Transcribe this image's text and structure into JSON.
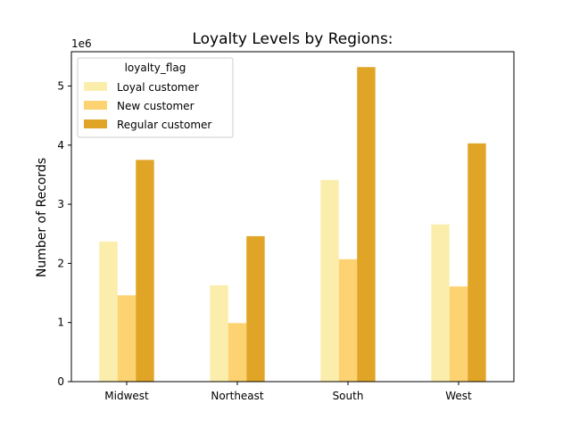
{
  "chart_data": {
    "type": "bar",
    "title": "Loyalty Levels by Regions:",
    "xlabel": "",
    "ylabel": "Number of Records",
    "y_offset_label": "1e6",
    "y_scale": 1000000,
    "ylim": [
      0,
      5580000
    ],
    "yticks": [
      0,
      1,
      2,
      3,
      4,
      5
    ],
    "categories": [
      "Midwest",
      "Northeast",
      "South",
      "West"
    ],
    "legend": {
      "title": "loyalty_flag",
      "placement": "top-left"
    },
    "series": [
      {
        "name": "Loyal customer",
        "color": "#fbeeac",
        "values": [
          2370000,
          1630000,
          3410000,
          2660000
        ]
      },
      {
        "name": "New customer",
        "color": "#fdd270",
        "values": [
          1460000,
          990000,
          2070000,
          1610000
        ]
      },
      {
        "name": "Regular customer",
        "color": "#e0a526",
        "values": [
          3750000,
          2460000,
          5320000,
          4030000
        ]
      }
    ],
    "grid": false
  }
}
